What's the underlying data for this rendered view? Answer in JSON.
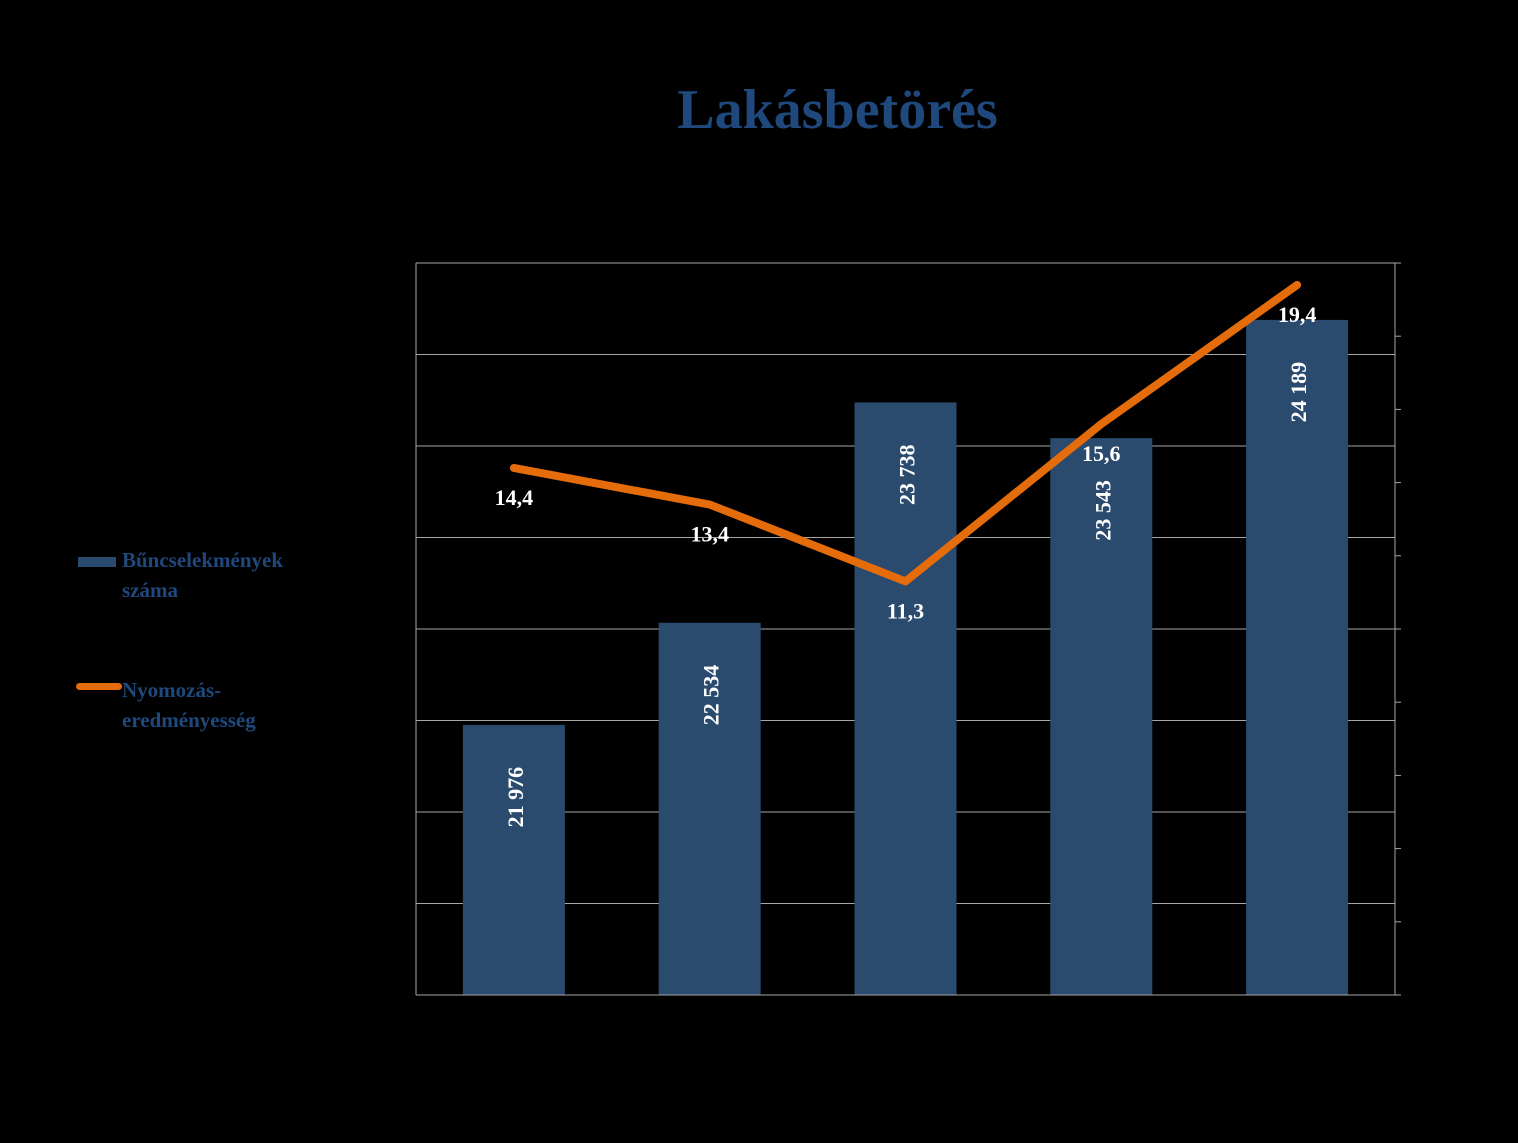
{
  "chart_data": {
    "type": "bar",
    "title": "Lakásbetörés",
    "categories": [
      "",
      "",
      "",
      "",
      ""
    ],
    "series": [
      {
        "name": "Bűncselekmények száma",
        "type": "bar",
        "axis": "left",
        "values": [
          21976,
          22534,
          23738,
          23543,
          24189
        ],
        "labels": [
          "21 976",
          "22 534",
          "23 738",
          "23 543",
          "24 189"
        ],
        "color": "#2A4A6E"
      },
      {
        "name": "Nyomozás-eredményesség",
        "type": "line",
        "axis": "right",
        "values": [
          14.4,
          13.4,
          11.3,
          15.6,
          19.4
        ],
        "labels": [
          "14,4",
          "13,4",
          "11,3",
          "15,6",
          "19,4"
        ],
        "color": "#E46C0A"
      }
    ],
    "ylim": [
      20500,
      24500
    ],
    "y2lim": [
      0,
      20
    ],
    "grid": true,
    "legend_position": "left"
  },
  "legend": {
    "bar_label_line1": "Bűncselekmények",
    "bar_label_line2": "száma",
    "line_label_line1": "Nyomozás-",
    "line_label_line2": "eredményesség"
  }
}
